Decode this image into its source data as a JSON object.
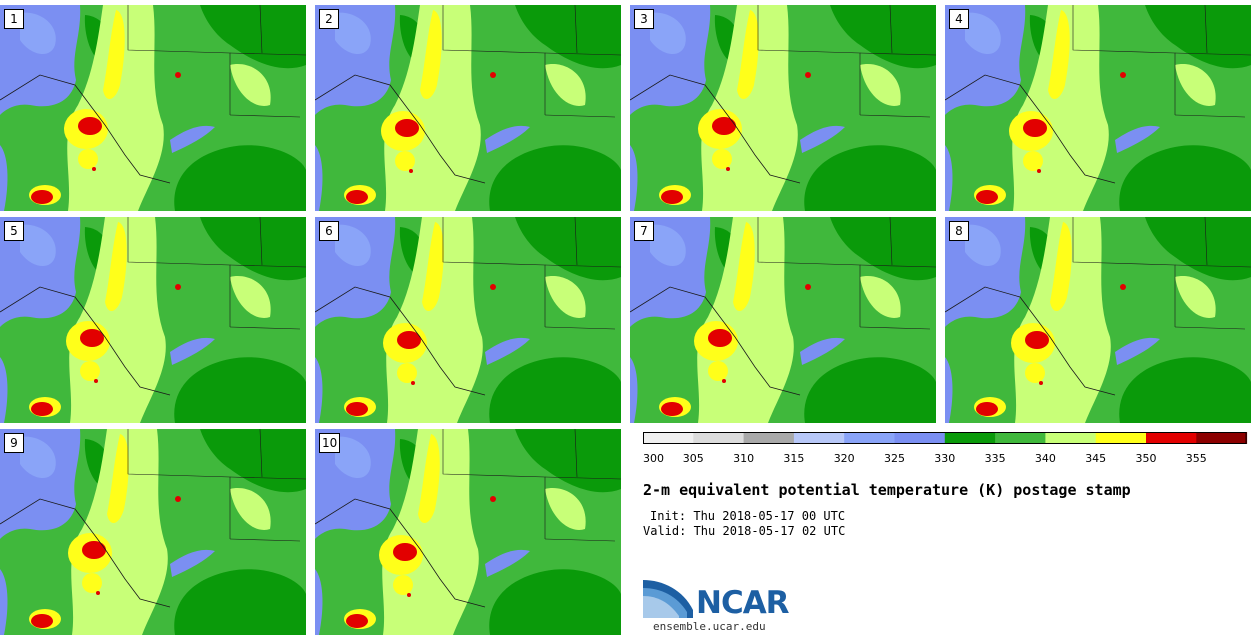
{
  "panels": [
    {
      "label": "1"
    },
    {
      "label": "2"
    },
    {
      "label": "3"
    },
    {
      "label": "4"
    },
    {
      "label": "5"
    },
    {
      "label": "6"
    },
    {
      "label": "7"
    },
    {
      "label": "8"
    },
    {
      "label": "9"
    },
    {
      "label": "10"
    }
  ],
  "colorbar": {
    "colors": [
      "#f0f0f0",
      "#dcdcdc",
      "#a9a9a9",
      "#b8c8f8",
      "#8aa4f8",
      "#7b8ff2",
      "#0a9a0a",
      "#40b83c",
      "#c8ff78",
      "#ffff1a",
      "#e20000",
      "#8c0000"
    ],
    "ticks": [
      "300",
      "305",
      "310",
      "315",
      "320",
      "325",
      "330",
      "335",
      "340",
      "345",
      "350",
      "355"
    ]
  },
  "title": "2-m equivalent potential temperature (K) postage stamp",
  "init": "Init: Thu 2018-05-17 00 UTC",
  "valid": "Valid: Thu 2018-05-17 02 UTC",
  "logo": {
    "text": "NCAR",
    "url": "ensemble.ucar.edu"
  },
  "map_colors": {
    "cool": "#7b8ff2",
    "cool_light": "#8aa4f8",
    "green_dark": "#0a9a0a",
    "green_mid": "#40b83c",
    "lime": "#c8ff78",
    "yellow": "#ffff1a",
    "red": "#e20000",
    "dark_red": "#8c0000"
  }
}
